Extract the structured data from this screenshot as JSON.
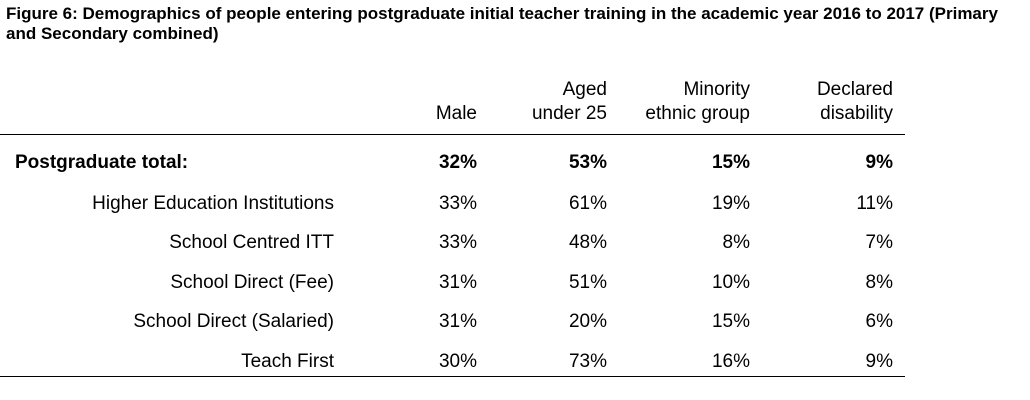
{
  "title": "Figure 6: Demographics of people entering postgraduate initial teacher training in the academic year 2016 to 2017 (Primary and Secondary combined)",
  "headers": {
    "male": "Male",
    "aged": [
      "Aged",
      "under 25"
    ],
    "minority": [
      "Minority",
      "ethnic group"
    ],
    "disability": [
      "Declared",
      "disability"
    ]
  },
  "total_row": {
    "label": "Postgraduate total:",
    "male": "32%",
    "aged": "53%",
    "minority": "15%",
    "disability": "9%"
  },
  "rows": [
    {
      "label": "Higher Education Institutions",
      "male": "33%",
      "aged": "61%",
      "minority": "19%",
      "disability": "11%"
    },
    {
      "label": "School Centred ITT",
      "male": "33%",
      "aged": "48%",
      "minority": "8%",
      "disability": "7%"
    },
    {
      "label": "School Direct (Fee)",
      "male": "31%",
      "aged": "51%",
      "minority": "10%",
      "disability": "8%"
    },
    {
      "label": "School Direct (Salaried)",
      "male": "31%",
      "aged": "20%",
      "minority": "15%",
      "disability": "6%"
    },
    {
      "label": "Teach First",
      "male": "30%",
      "aged": "73%",
      "minority": "16%",
      "disability": "9%"
    }
  ]
}
